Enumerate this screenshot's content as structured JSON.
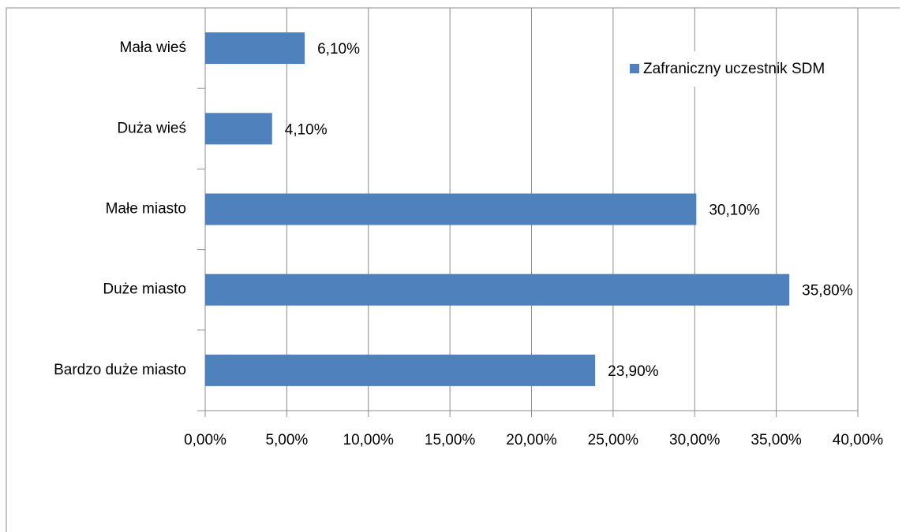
{
  "chart_data": {
    "type": "bar",
    "orientation": "horizontal",
    "categories": [
      "Mała wieś",
      "Duża wieś",
      "Małe miasto",
      "Duże miasto",
      "Bardzo duże miasto"
    ],
    "series": [
      {
        "name": "Zafraniczny uczestnik SDM",
        "color": "#4f81bd",
        "values": [
          6.1,
          4.1,
          30.1,
          35.8,
          23.9
        ],
        "value_labels": [
          "6,10%",
          "4,10%",
          "30,10%",
          "35,80%",
          "23,90%"
        ]
      }
    ],
    "xlim": [
      0,
      40
    ],
    "xticks": [
      {
        "value": 0,
        "label": "0,00%"
      },
      {
        "value": 5,
        "label": "5,00%"
      },
      {
        "value": 10,
        "label": "10,00%"
      },
      {
        "value": 15,
        "label": "15,00%"
      },
      {
        "value": 20,
        "label": "20,00%"
      },
      {
        "value": 25,
        "label": "25,00%"
      },
      {
        "value": 30,
        "label": "30,00%"
      },
      {
        "value": 35,
        "label": "35,00%"
      },
      {
        "value": 40,
        "label": "40,00%"
      }
    ],
    "grid": true,
    "legend": "upper right"
  }
}
